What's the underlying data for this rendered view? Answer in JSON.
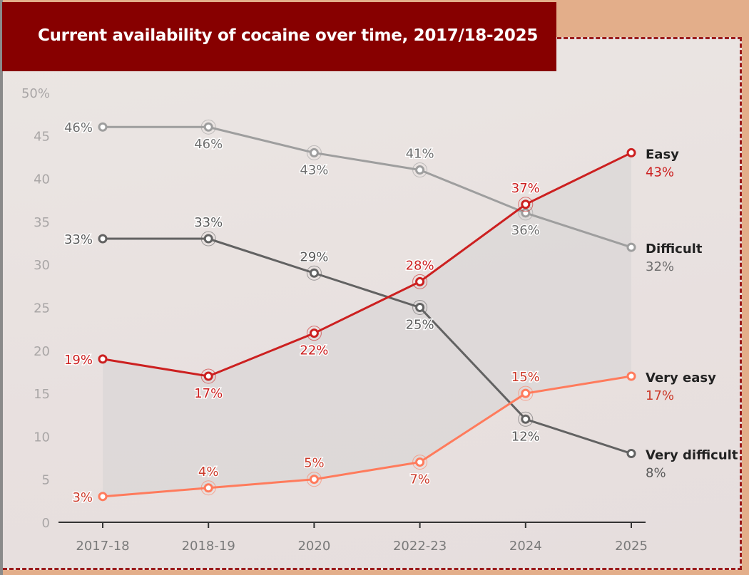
{
  "chart_data": {
    "type": "line",
    "title": "Current availability of cocaine over time, 2017/18-2025",
    "categories": [
      "2017-18",
      "2018-19",
      "2020",
      "2022-23",
      "2024",
      "2025"
    ],
    "ylim": [
      0,
      50
    ],
    "yticks": [
      "0",
      "5",
      "10",
      "15",
      "20",
      "25",
      "30",
      "35",
      "40",
      "45",
      "50%"
    ],
    "grid": false,
    "legend": "end-of-line labels",
    "series": [
      {
        "name": "Difficult",
        "values": [
          46,
          46,
          43,
          41,
          36,
          32
        ],
        "labels": [
          "46%",
          "46%",
          "43%",
          "41%",
          "36%",
          "32%"
        ],
        "color": "#9e9e9e",
        "label_color": "#6f6f6f"
      },
      {
        "name": "Very difficult",
        "values": [
          33,
          33,
          29,
          25,
          12,
          8
        ],
        "labels": [
          "33%",
          "33%",
          "29%",
          "25%",
          "12%",
          "8%"
        ],
        "color": "#626262",
        "label_color": "#5a5a5a"
      },
      {
        "name": "Easy",
        "values": [
          19,
          17,
          22,
          28,
          37,
          43
        ],
        "labels": [
          "19%",
          "17%",
          "22%",
          "28%",
          "37%",
          "43%"
        ],
        "color": "#cc2020",
        "label_color": "#cc2020"
      },
      {
        "name": "Very easy",
        "values": [
          3,
          4,
          5,
          7,
          15,
          17
        ],
        "labels": [
          "3%",
          "4%",
          "5%",
          "7%",
          "15%",
          "17%"
        ],
        "color": "#ff7b5c",
        "label_color": "#cc3a2a"
      }
    ],
    "shaded_band": [
      "Easy",
      "Very easy"
    ]
  }
}
